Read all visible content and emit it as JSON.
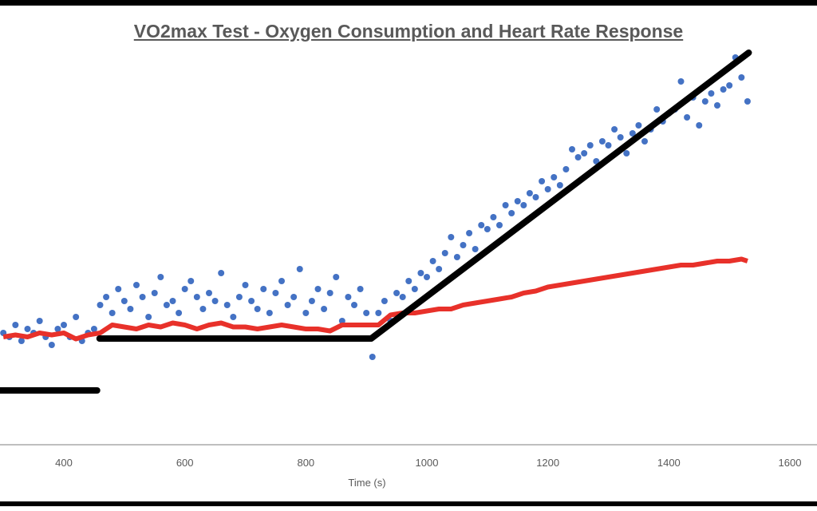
{
  "chart_data": {
    "type": "scatter",
    "title": "VO2max Test - Oxygen Consumption and Heart Rate Response",
    "xlabel": "Time (s)",
    "ylabel": "",
    "xlim": [
      294,
      1645
    ],
    "ylim": [
      0,
      100
    ],
    "xticks": [
      "400",
      "600",
      "800",
      "1000",
      "1200",
      "1400",
      "1600"
    ],
    "grid": false,
    "colors": {
      "vo2": "#4472c4",
      "heart_rate": "#e8312a",
      "workload": "#000000",
      "axis": "#bfbfbf",
      "text": "#595959"
    },
    "series": [
      {
        "kind": "scatter",
        "color": "#4472c4",
        "x": [
          300,
          310,
          320,
          330,
          340,
          350,
          360,
          370,
          380,
          390,
          400,
          410,
          420,
          430,
          440,
          450,
          460,
          470,
          480,
          490,
          500,
          510,
          520,
          530,
          540,
          550,
          560,
          570,
          580,
          590,
          600,
          610,
          620,
          630,
          640,
          650,
          660,
          670,
          680,
          690,
          700,
          710,
          720,
          730,
          740,
          750,
          760,
          770,
          780,
          790,
          800,
          810,
          820,
          830,
          840,
          850,
          860,
          870,
          880,
          890,
          900,
          910,
          920,
          930,
          940,
          950,
          960,
          970,
          980,
          990,
          1000,
          1010,
          1020,
          1030,
          1040,
          1050,
          1060,
          1070,
          1080,
          1090,
          1100,
          1110,
          1120,
          1130,
          1140,
          1150,
          1160,
          1170,
          1180,
          1190,
          1200,
          1210,
          1220,
          1230,
          1240,
          1250,
          1260,
          1270,
          1280,
          1290,
          1300,
          1310,
          1320,
          1330,
          1340,
          1350,
          1360,
          1370,
          1380,
          1390,
          1400,
          1410,
          1420,
          1430,
          1440,
          1450,
          1460,
          1470,
          1480,
          1490,
          1500,
          1510,
          1520,
          1530
        ],
        "y": [
          28,
          27,
          30,
          26,
          29,
          28,
          31,
          27,
          25,
          29,
          30,
          27,
          32,
          26,
          28,
          29,
          35,
          37,
          33,
          39,
          36,
          34,
          40,
          37,
          32,
          38,
          42,
          35,
          36,
          33,
          39,
          41,
          37,
          34,
          38,
          36,
          43,
          35,
          32,
          37,
          40,
          36,
          34,
          39,
          33,
          38,
          41,
          35,
          37,
          44,
          33,
          36,
          39,
          34,
          38,
          42,
          31,
          37,
          35,
          39,
          33,
          22,
          33,
          36,
          31,
          38,
          37,
          41,
          39,
          43,
          42,
          46,
          44,
          48,
          52,
          47,
          50,
          53,
          49,
          55,
          54,
          57,
          55,
          60,
          58,
          61,
          60,
          63,
          62,
          66,
          64,
          67,
          65,
          69,
          74,
          72,
          73,
          75,
          71,
          76,
          75,
          79,
          77,
          73,
          78,
          80,
          76,
          79,
          84,
          81,
          83,
          84,
          91,
          82,
          87,
          80,
          86,
          88,
          85,
          89,
          90,
          97,
          92,
          86
        ]
      },
      {
        "kind": "line",
        "color": "#e8312a",
        "x": [
          300,
          320,
          340,
          360,
          380,
          400,
          420,
          440,
          460,
          480,
          500,
          520,
          540,
          560,
          580,
          600,
          620,
          640,
          660,
          680,
          700,
          720,
          740,
          760,
          780,
          800,
          820,
          840,
          860,
          880,
          900,
          920,
          940,
          960,
          980,
          1000,
          1020,
          1040,
          1060,
          1080,
          1100,
          1120,
          1140,
          1160,
          1180,
          1200,
          1220,
          1240,
          1260,
          1280,
          1300,
          1320,
          1340,
          1360,
          1380,
          1400,
          1420,
          1440,
          1460,
          1480,
          1500,
          1520,
          1530
        ],
        "y": [
          27,
          27.5,
          27,
          28,
          27.5,
          28,
          26.5,
          27.5,
          28,
          30,
          29.5,
          29,
          30,
          29.5,
          30.5,
          30,
          29,
          30,
          30.5,
          29.5,
          29.5,
          29,
          29.5,
          30,
          29.5,
          29,
          29,
          28.5,
          30,
          30,
          30,
          30,
          32.5,
          33,
          33,
          33.5,
          34,
          34,
          35,
          35.5,
          36,
          36.5,
          37,
          38,
          38.5,
          39.5,
          40,
          40.5,
          41,
          41.5,
          42,
          42.5,
          43,
          43.5,
          44,
          44.5,
          45,
          45,
          45.5,
          46,
          46,
          46.5,
          46
        ]
      },
      {
        "kind": "line",
        "color": "#000000",
        "segments": [
          {
            "x": [
              294,
              455
            ],
            "y": [
              13.6,
              13.6
            ]
          },
          {
            "x": [
              459,
              908,
              1532
            ],
            "y": [
              26.6,
              26.6,
              98.2
            ]
          }
        ]
      }
    ]
  }
}
